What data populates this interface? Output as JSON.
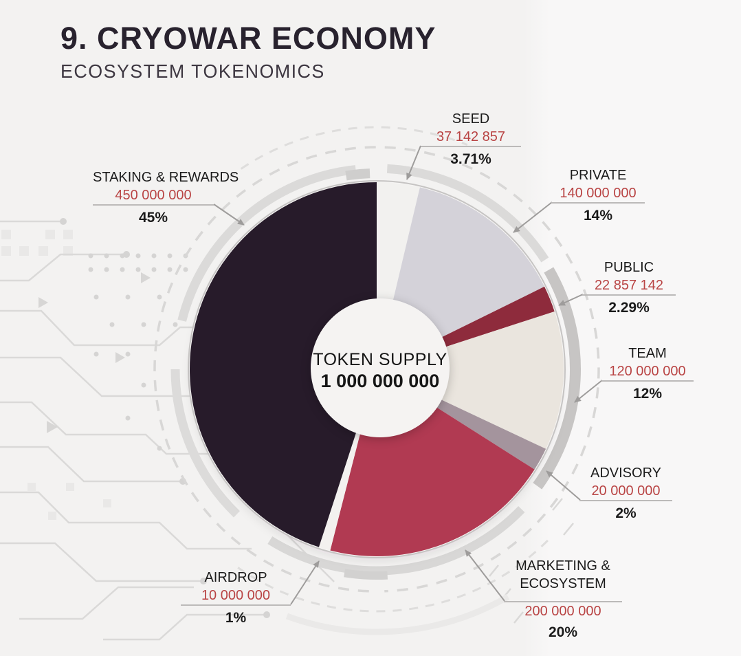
{
  "page": {
    "title": "9. CRYOWAR ECONOMY",
    "subtitle": "ECOSYSTEM TOKENOMICS"
  },
  "chart_data": {
    "type": "pie",
    "title": "CRYOWAR ecosystem tokenomics",
    "center_label": "TOKEN SUPPLY",
    "center_value": "1 000 000 000",
    "total": 1000000000,
    "start_angle_deg": 0,
    "direction": "clockwise",
    "legend_position": "around-chart",
    "segments": [
      {
        "label": "SEED",
        "amount": "37 142 857",
        "value": 37142857,
        "pct": "3.71%",
        "pct_value": 3.71,
        "color": "#f2f1ef"
      },
      {
        "label": "PRIVATE",
        "amount": "140 000 000",
        "value": 140000000,
        "pct": "14%",
        "pct_value": 14,
        "color": "#d4d2d9"
      },
      {
        "label": "PUBLIC",
        "amount": "22 857 142",
        "value": 22857142,
        "pct": "2.29%",
        "pct_value": 2.29,
        "color": "#8e2b3c"
      },
      {
        "label": "TEAM",
        "amount": "120 000 000",
        "value": 120000000,
        "pct": "12%",
        "pct_value": 12,
        "color": "#eae5de"
      },
      {
        "label": "ADVISORY",
        "amount": "20 000 000",
        "value": 20000000,
        "pct": "2%",
        "pct_value": 2,
        "color": "#a4949d"
      },
      {
        "label": "MARKETING & ECOSYSTEM",
        "amount": "200 000 000",
        "value": 200000000,
        "pct": "20%",
        "pct_value": 20,
        "color": "#b13a52"
      },
      {
        "label": "AIRDROP",
        "amount": "10 000 000",
        "value": 10000000,
        "pct": "1%",
        "pct_value": 1,
        "color": "#f3f1ef"
      },
      {
        "label": "STAKING & REWARDS",
        "amount": "450 000 000",
        "value": 450000000,
        "pct": "45%",
        "pct_value": 45,
        "color": "#271b2a"
      }
    ],
    "colors": {
      "amount_text": "#b94444",
      "label_text": "#1b1b1b",
      "leader_line": "#9e9c9b",
      "title_text": "#28222e",
      "background": "#f3f2f1"
    }
  }
}
